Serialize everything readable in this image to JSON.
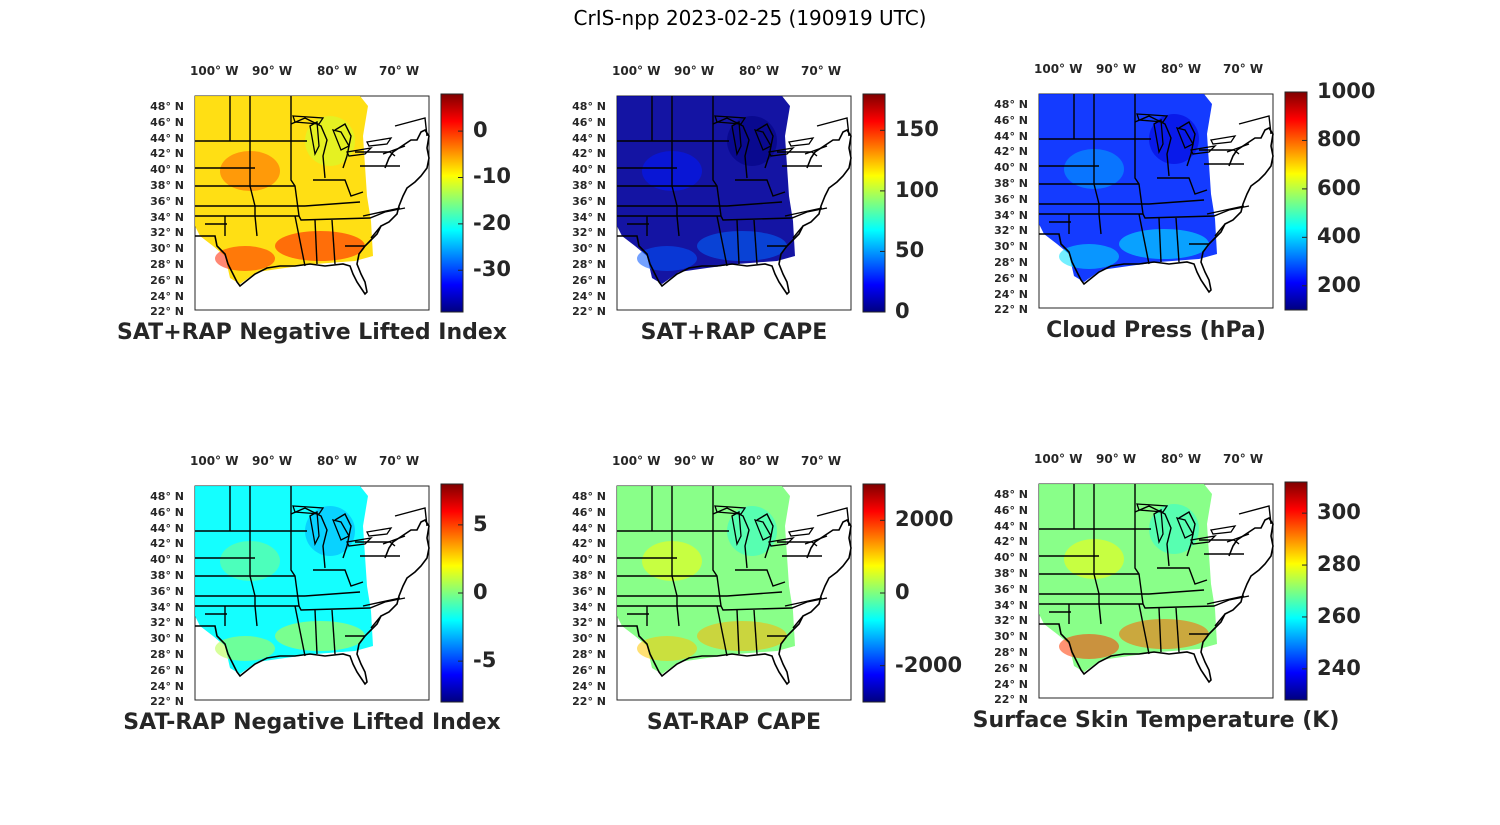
{
  "figure_title": "CrIS-npp 2023-02-25 (190919 UTC)",
  "lon_labels": [
    "100° W",
    "90° W",
    "80° W",
    "70° W"
  ],
  "lat_labels": [
    "48° N",
    "46° N",
    "44° N",
    "42° N",
    "40° N",
    "38° N",
    "36° N",
    "34° N",
    "32° N",
    "30° N",
    "28° N",
    "26° N",
    "24° N",
    "22° N"
  ],
  "colormap": {
    "name": "jet",
    "stops": [
      "#00007f",
      "#0000ff",
      "#007fff",
      "#00ffff",
      "#7fff7f",
      "#ffff00",
      "#ff7f00",
      "#ff0000",
      "#7f0000"
    ]
  },
  "land_outline_color": "#000000",
  "panels": [
    {
      "id": "sat-rap-plus-negative-lifted-index",
      "title": "SAT+RAP Negative Lifted Index",
      "colorbar": {
        "min": -39,
        "max": 8,
        "ticks": [
          0,
          -10,
          -20,
          -30
        ]
      },
      "dominant_value": -8
    },
    {
      "id": "sat-rap-plus-cape",
      "title": "SAT+RAP CAPE",
      "colorbar": {
        "min": 0,
        "max": 180,
        "ticks": [
          150,
          100,
          50,
          0
        ]
      },
      "dominant_value": 5
    },
    {
      "id": "cloud-press",
      "title": "Cloud Press (hPa)",
      "colorbar": {
        "min": 100,
        "max": 1000,
        "ticks": [
          1000,
          800,
          600,
          400,
          200
        ]
      },
      "dominant_value": 250
    },
    {
      "id": "sat-minus-rap-negative-lifted-index",
      "title": "SAT-RAP Negative Lifted Index",
      "colorbar": {
        "min": -8,
        "max": 8,
        "ticks": [
          5,
          0,
          -5
        ]
      },
      "dominant_value": -2
    },
    {
      "id": "sat-minus-rap-cape",
      "title": "SAT-RAP CAPE",
      "colorbar": {
        "min": -3000,
        "max": 3000,
        "ticks": [
          2000,
          0,
          -2000
        ]
      },
      "dominant_value": 0
    },
    {
      "id": "surface-skin-temperature",
      "title": "Surface Skin Temperature (K)",
      "colorbar": {
        "min": 228,
        "max": 312,
        "ticks": [
          300,
          280,
          260,
          240
        ]
      },
      "dominant_value": 270
    }
  ]
}
